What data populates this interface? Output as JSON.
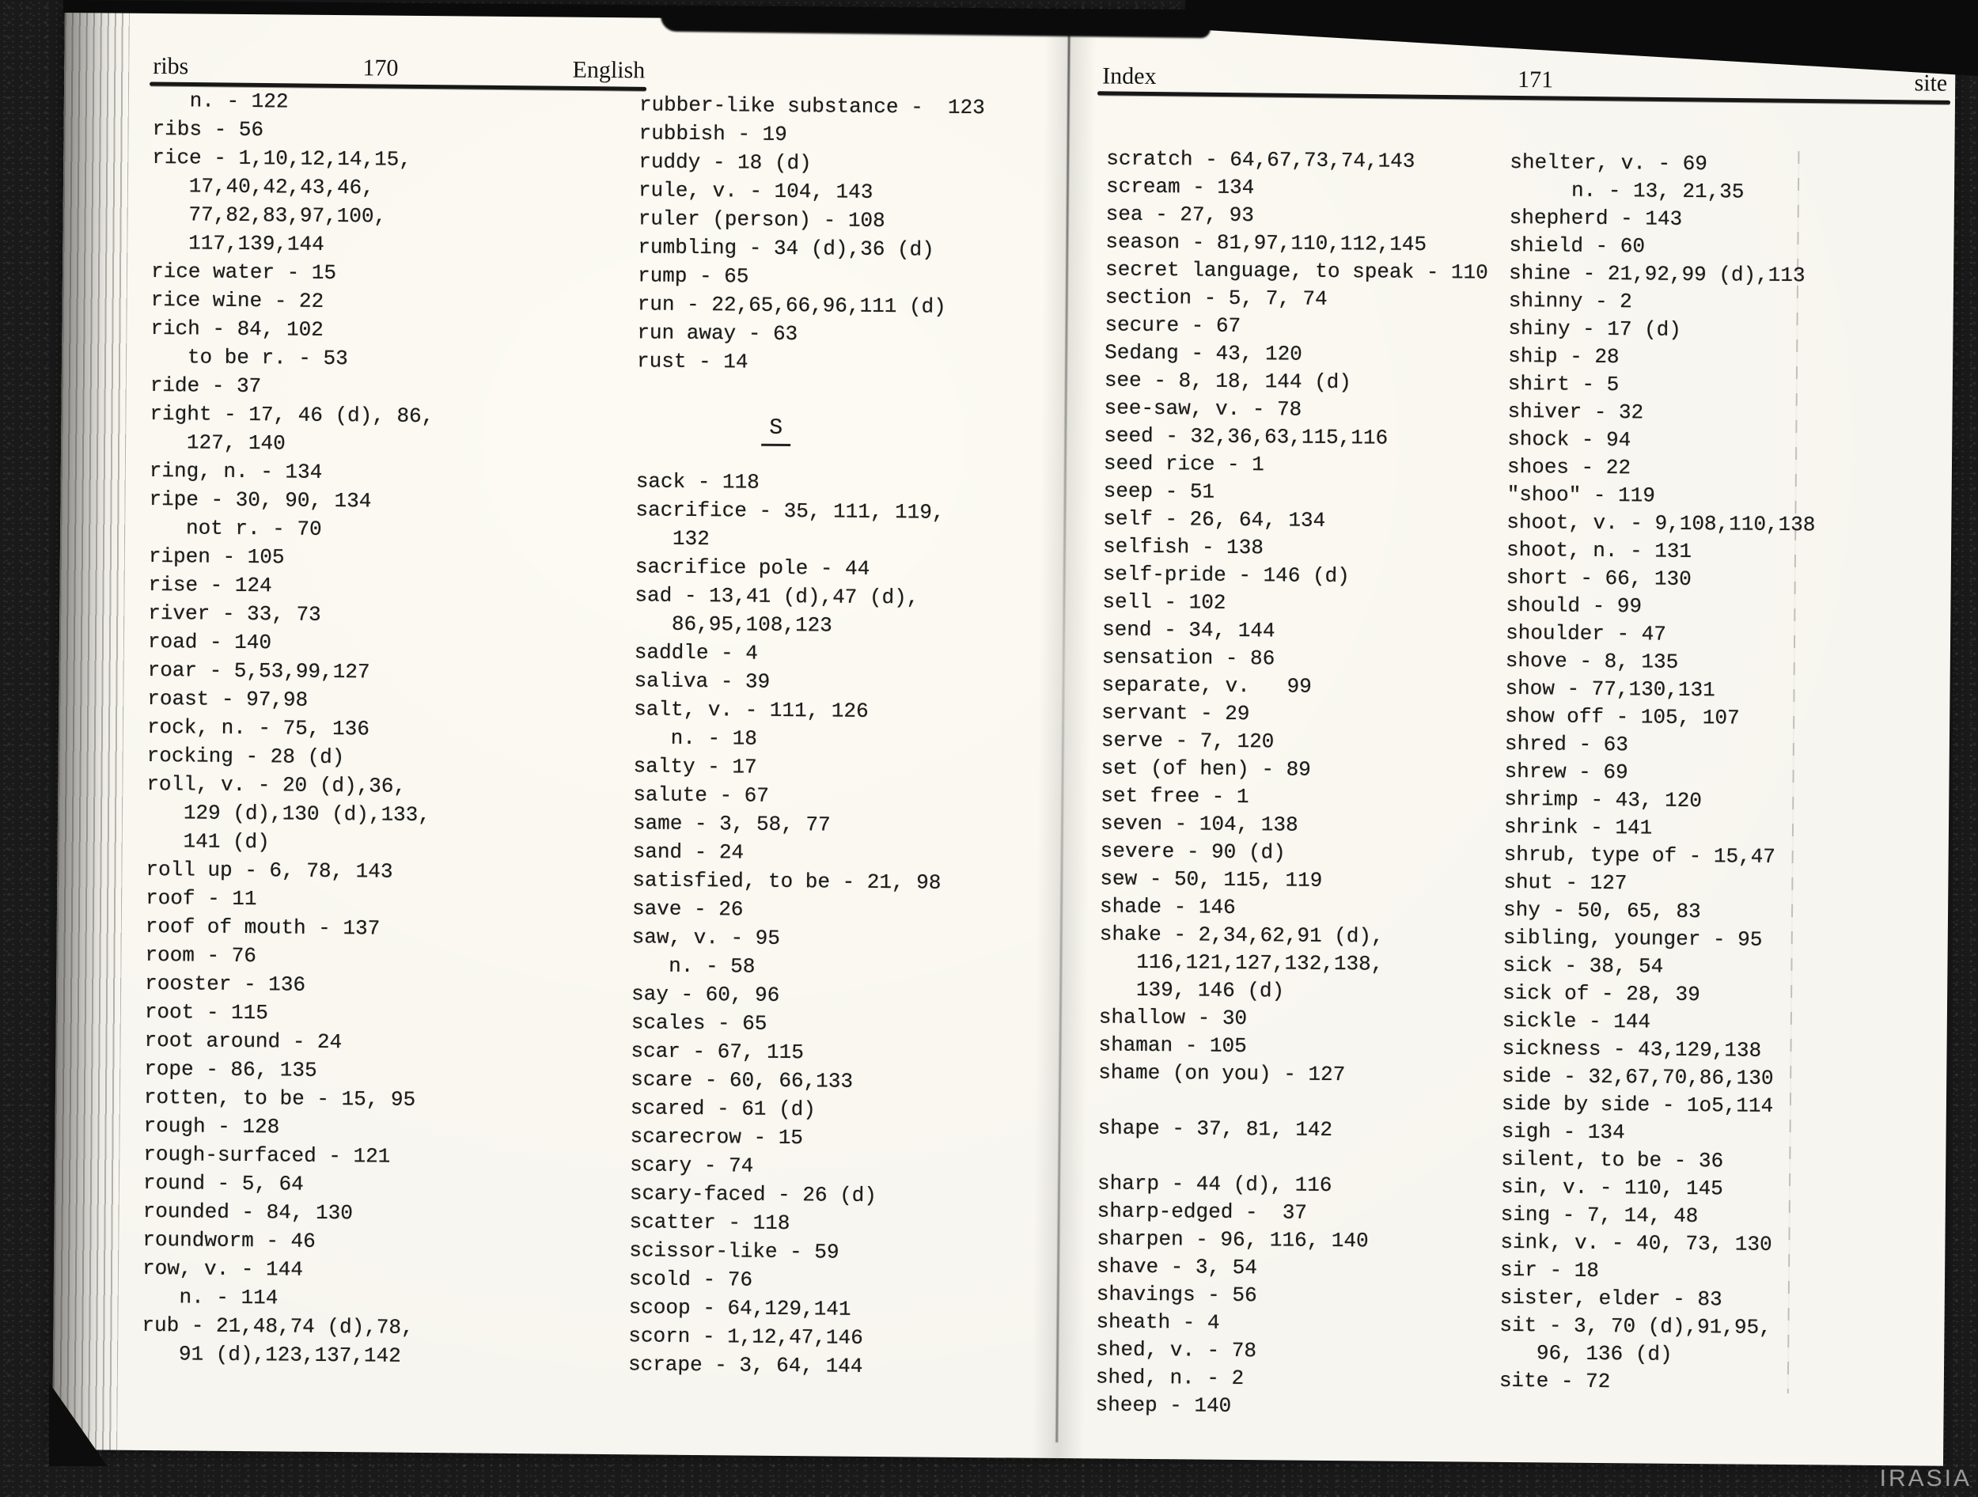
{
  "colors": {
    "background": "#1a1a1a",
    "page": "#f7f5ef",
    "ink": "#1c1c1c",
    "watermark": "#9a9a9a"
  },
  "watermark": "IRASIA",
  "left_page": {
    "header": {
      "word": "ribs",
      "page_number": "170",
      "corner": "English"
    },
    "section_heading": "S",
    "col1_lines": [
      "   n. - 122",
      "ribs - 56",
      "rice - 1,10,12,14,15,",
      "   17,40,42,43,46,",
      "   77,82,83,97,100,",
      "   117,139,144",
      "rice water - 15",
      "rice wine - 22",
      "rich - 84, 102",
      "   to be r. - 53",
      "ride - 37",
      "right - 17, 46 (d), 86,",
      "   127, 140",
      "ring, n. - 134",
      "ripe - 30, 90, 134",
      "   not r. - 70",
      "ripen - 105",
      "rise - 124",
      "river - 33, 73",
      "road - 140",
      "roar - 5,53,99,127",
      "roast - 97,98",
      "rock, n. - 75, 136",
      "rocking - 28 (d)",
      "roll, v. - 20 (d),36,",
      "   129 (d),130 (d),133,",
      "   141 (d)",
      "roll up - 6, 78, 143",
      "roof - 11",
      "roof of mouth - 137",
      "room - 76",
      "rooster - 136",
      "root - 115",
      "root around - 24",
      "rope - 86, 135",
      "rotten, to be - 15, 95",
      "rough - 128",
      "rough-surfaced - 121",
      "round - 5, 64",
      "rounded - 84, 130",
      "roundworm - 46",
      "row, v. - 144",
      "   n. - 114",
      "rub - 21,48,74 (d),78,",
      "   91 (d),123,137,142"
    ],
    "col2_r_lines": [
      "rubber-like substance -  123",
      "rubbish - 19",
      "ruddy - 18 (d)",
      "rule, v. - 104, 143",
      "ruler (person) - 108",
      "rumbling - 34 (d),36 (d)",
      "rump - 65",
      "run - 22,65,66,96,111 (d)",
      "run away - 63",
      "rust - 14"
    ],
    "col2_s_lines": [
      "sack - 118",
      "sacrifice - 35, 111, 119,",
      "   132",
      "sacrifice pole - 44",
      "sad - 13,41 (d),47 (d),",
      "   86,95,108,123",
      "saddle - 4",
      "saliva - 39",
      "salt, v. - 111, 126",
      "   n. - 18",
      "salty - 17",
      "salute - 67",
      "same - 3, 58, 77",
      "sand - 24",
      "satisfied, to be - 21, 98",
      "save - 26",
      "saw, v. - 95",
      "   n. - 58",
      "say - 60, 96",
      "scales - 65",
      "scar - 67, 115",
      "scare - 60, 66,133",
      "scared - 61 (d)",
      "scarecrow - 15",
      "scary - 74",
      "scary-faced - 26 (d)",
      "scatter - 118",
      "scissor-like - 59",
      "scold - 76",
      "scoop - 64,129,141",
      "scorn - 1,12,47,146",
      "scrape - 3, 64, 144"
    ]
  },
  "right_page": {
    "header": {
      "word": "Index",
      "page_number": "171",
      "corner": "site"
    },
    "col3_lines": [
      "scratch - 64,67,73,74,143",
      "scream - 134",
      "sea - 27, 93",
      "season - 81,97,110,112,145",
      "secret language, to speak - 110",
      "section - 5, 7, 74",
      "secure - 67",
      "Sedang - 43, 120",
      "see - 8, 18, 144 (d)",
      "see-saw, v. - 78",
      "seed - 32,36,63,115,116",
      "seed rice - 1",
      "seep - 51",
      "self - 26, 64, 134",
      "selfish - 138",
      "self-pride - 146 (d)",
      "sell - 102",
      "send - 34, 144",
      "sensation - 86",
      "separate, v.   99",
      "servant - 29",
      "serve - 7, 120",
      "set (of hen) - 89",
      "set free - 1",
      "seven - 104, 138",
      "severe - 90 (d)",
      "sew - 50, 115, 119",
      "shade - 146",
      "shake - 2,34,62,91 (d),",
      "   116,121,127,132,138,",
      "   139, 146 (d)",
      "shallow - 30",
      "shaman - 105",
      "shame (on you) - 127",
      "",
      "shape - 37, 81, 142",
      "",
      "sharp - 44 (d), 116",
      "sharp-edged -  37",
      "sharpen - 96, 116, 140",
      "shave - 3, 54",
      "shavings - 56",
      "sheath - 4",
      "shed, v. - 78",
      "shed, n. - 2",
      "sheep - 140"
    ],
    "col4_lines": [
      "shelter, v. - 69",
      "     n. - 13, 21,35",
      "shepherd - 143",
      "shield - 60",
      "shine - 21,92,99 (d),113",
      "shinny - 2",
      "shiny - 17 (d)",
      "ship - 28",
      "shirt - 5",
      "shiver - 32",
      "shock - 94",
      "shoes - 22",
      "\"shoo\" - 119",
      "shoot, v. - 9,108,110,138",
      "shoot, n. - 131",
      "short - 66, 130",
      "should - 99",
      "shoulder - 47",
      "shove - 8, 135",
      "show - 77,130,131",
      "show off - 105, 107",
      "shred - 63",
      "shrew - 69",
      "shrimp - 43, 120",
      "shrink - 141",
      "shrub, type of - 15,47",
      "shut - 127",
      "shy - 50, 65, 83",
      "sibling, younger - 95",
      "sick - 38, 54",
      "sick of - 28, 39",
      "sickle - 144",
      "sickness - 43,129,138",
      "side - 32,67,70,86,130",
      "side by side - 1o5,114",
      "sigh - 134",
      "silent, to be - 36",
      "sin, v. - 110, 145",
      "sing - 7, 14, 48",
      "sink, v. - 40, 73, 130",
      "sir - 18",
      "sister, elder - 83",
      "sit - 3, 70 (d),91,95,",
      "   96, 136 (d)",
      "site - 72"
    ]
  }
}
